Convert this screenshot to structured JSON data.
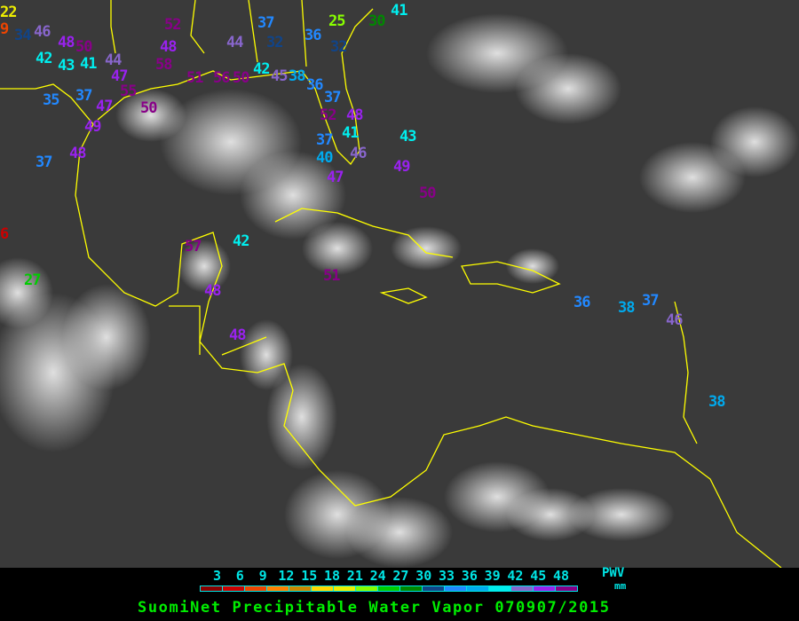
{
  "title": "SuomiNet Precipitable Water Vapor 070907/2015",
  "legend": {
    "unit_label": "PWV",
    "unit": "mm",
    "ticks": [
      "3",
      "6",
      "9",
      "12",
      "15",
      "18",
      "21",
      "24",
      "27",
      "30",
      "33",
      "36",
      "39",
      "42",
      "45",
      "48"
    ],
    "colors": [
      "#8b0000",
      "#cc0000",
      "#ee4400",
      "#ff8000",
      "#cc8800",
      "#ffd700",
      "#eeee00",
      "#88ff00",
      "#00cc00",
      "#008800",
      "#114488",
      "#2288ff",
      "#00aaee",
      "#00eeee",
      "#8866cc",
      "#9922ee",
      "#880088"
    ]
  },
  "coastline_color": "#ffff00",
  "stations": [
    "22",
    "9",
    "34",
    "42",
    "43",
    "41",
    "44",
    "47",
    "35",
    "37",
    "47",
    "49",
    "48",
    "37",
    "46",
    "48",
    "50",
    "58",
    "48",
    "52",
    "55",
    "50",
    "44",
    "37",
    "32",
    "36",
    "32",
    "37",
    "52",
    "48",
    "41",
    "37",
    "40",
    "46",
    "42",
    "45",
    "38",
    "36",
    "25",
    "30",
    "47",
    "49",
    "43",
    "50",
    "57",
    "42",
    "48",
    "48",
    "51",
    "27",
    "6",
    "36",
    "38",
    "37",
    "46",
    "38",
    "41",
    "51",
    "56",
    "50"
  ]
}
